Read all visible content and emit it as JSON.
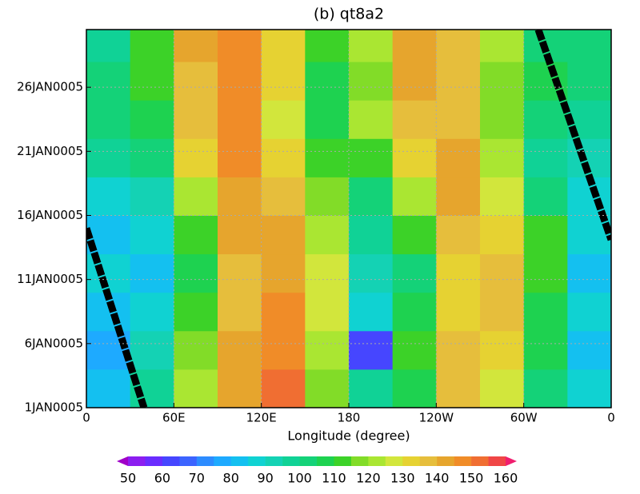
{
  "chart_data": {
    "type": "contour",
    "title": "(b) qt8a2",
    "x_label": "Longitude (degree)",
    "xlim": [
      0,
      360
    ],
    "xticks": [
      0,
      {
        "value": 60,
        "label": "60E"
      },
      {
        "value": 120,
        "label": "120E"
      },
      180,
      {
        "value": 240,
        "label": "120W"
      },
      {
        "value": 300,
        "label": "60W"
      },
      {
        "value": 360,
        "label": "0"
      }
    ],
    "ylim": [
      1,
      30.5
    ],
    "yticks": [
      {
        "value": 1,
        "label": "1JAN0005"
      },
      {
        "value": 6,
        "label": "6JAN0005"
      },
      {
        "value": 11,
        "label": "11JAN0005"
      },
      {
        "value": 16,
        "label": "16JAN0005"
      },
      {
        "value": 21,
        "label": "21JAN0005"
      },
      {
        "value": 26,
        "label": "26JAN0005"
      }
    ],
    "grid": true,
    "x": [
      15,
      45,
      75,
      105,
      135,
      165,
      195,
      225,
      255,
      285,
      315,
      345
    ],
    "y": [
      2.5,
      5.5,
      8.5,
      11.5,
      14.5,
      17.5,
      20.5,
      23.5,
      26.5,
      29.5
    ],
    "z": [
      [
        80,
        95,
        120,
        140,
        150,
        115,
        95,
        105,
        135,
        125,
        100,
        85
      ],
      [
        75,
        90,
        115,
        140,
        145,
        120,
        60,
        110,
        135,
        130,
        105,
        80
      ],
      [
        80,
        85,
        110,
        135,
        145,
        125,
        85,
        105,
        130,
        135,
        105,
        85
      ],
      [
        85,
        80,
        105,
        135,
        140,
        125,
        90,
        100,
        130,
        135,
        110,
        80
      ],
      [
        80,
        85,
        110,
        140,
        140,
        120,
        95,
        110,
        135,
        130,
        110,
        85
      ],
      [
        85,
        90,
        120,
        140,
        135,
        115,
        100,
        120,
        140,
        125,
        100,
        85
      ],
      [
        95,
        100,
        130,
        145,
        130,
        110,
        110,
        130,
        140,
        120,
        95,
        90
      ],
      [
        100,
        105,
        135,
        145,
        125,
        105,
        120,
        135,
        135,
        115,
        100,
        95
      ],
      [
        100,
        110,
        135,
        145,
        130,
        105,
        115,
        140,
        135,
        115,
        105,
        100
      ],
      [
        95,
        110,
        140,
        145,
        130,
        110,
        120,
        140,
        135,
        120,
        100,
        100
      ]
    ],
    "lines": [
      {
        "x": [
          0,
          39.5,
          null,
          310,
          360
        ],
        "y": [
          15,
          1,
          null,
          30.5,
          14.1
        ],
        "color": "#000000"
      }
    ],
    "colorbar": {
      "levels": [
        50,
        55,
        60,
        65,
        70,
        75,
        80,
        85,
        90,
        95,
        100,
        105,
        110,
        115,
        120,
        125,
        130,
        135,
        140,
        145,
        150,
        155,
        160
      ],
      "colors": [
        "#a000c8",
        "#8c1ef0",
        "#6a2cff",
        "#4646ff",
        "#3c64ff",
        "#2d8cff",
        "#1eaaff",
        "#14c0f0",
        "#10d2d2",
        "#14d2b4",
        "#10d296",
        "#14d278",
        "#1ed250",
        "#3cd228",
        "#82dc28",
        "#aae632",
        "#d2e63c",
        "#e6d232",
        "#e6be3c",
        "#e6a52d",
        "#f08c28",
        "#f06e32",
        "#f04646",
        "#f01e6e"
      ],
      "ticks": [
        50,
        60,
        70,
        80,
        90,
        100,
        110,
        120,
        130,
        140,
        150,
        160
      ]
    }
  }
}
